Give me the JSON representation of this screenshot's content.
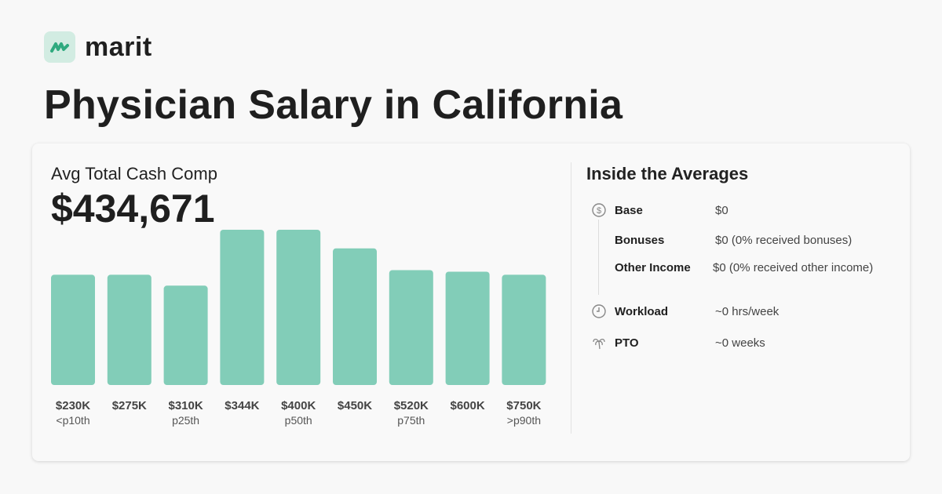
{
  "brand": {
    "name": "marit",
    "color": "#2faa7f"
  },
  "title": "Physician Salary in California",
  "summary": {
    "label": "Avg Total Cash Comp",
    "value": "$434,671"
  },
  "chart_data": {
    "type": "bar",
    "categories": [
      "$230K",
      "$275K",
      "$310K",
      "$344K",
      "$400K",
      "$450K",
      "$520K",
      "$600K",
      "$750K"
    ],
    "sublabels": [
      "<p10th",
      "",
      "p25th",
      "",
      "p50th",
      "",
      "p75th",
      "",
      ">p90th"
    ],
    "values": [
      71,
      71,
      64,
      100,
      100,
      88,
      74,
      73,
      71
    ],
    "bar_color": "#82cdb8",
    "grid": false
  },
  "averages": {
    "title": "Inside the Averages",
    "rows": [
      {
        "icon": "dollar-circle-icon",
        "label": "Base",
        "value": "$0"
      },
      {
        "icon": "",
        "label": "Bonuses",
        "value": "$0 (0% received bonuses)"
      },
      {
        "icon": "",
        "label": "Other Income",
        "value": "$0 (0% received other income)"
      },
      {
        "icon": "clock-icon",
        "label": "Workload",
        "value": "~0 hrs/week"
      },
      {
        "icon": "palm-tree-icon",
        "label": "PTO",
        "value": "~0 weeks"
      }
    ]
  }
}
